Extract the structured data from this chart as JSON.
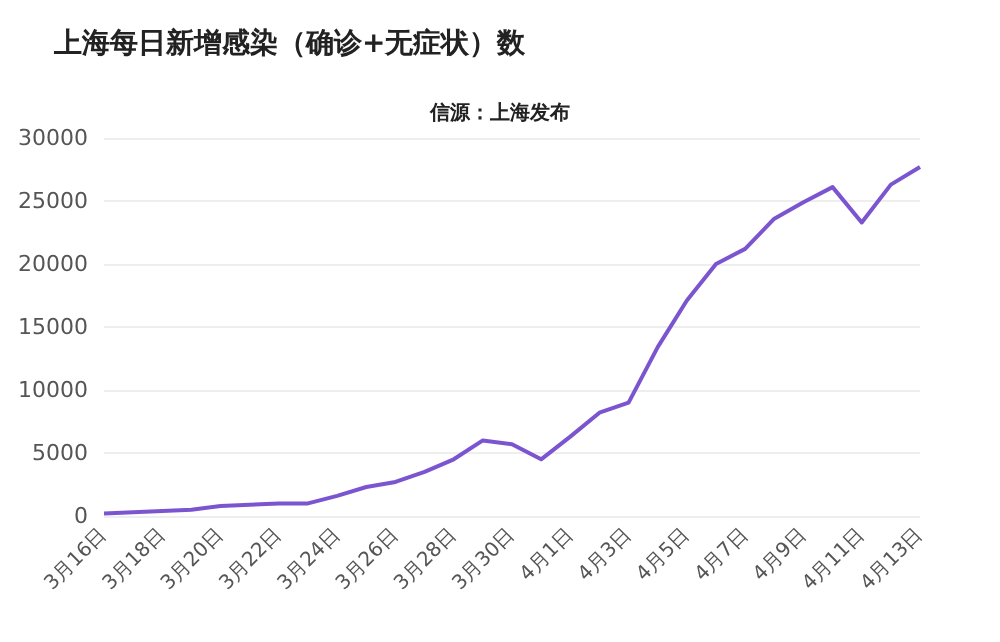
{
  "chart_data": {
    "type": "line",
    "title": "上海每日新增感染（确诊+无症状）数",
    "subtitle": "信源：上海发布",
    "categories": [
      "3月16日",
      null,
      "3月18日",
      null,
      "3月20日",
      null,
      "3月22日",
      null,
      "3月24日",
      null,
      "3月26日",
      null,
      "3月28日",
      null,
      "3月30日",
      null,
      "4月1日",
      null,
      "4月3日",
      null,
      "4月5日",
      null,
      "4月7日",
      null,
      "4月9日",
      null,
      "4月11日",
      null,
      "4月13日"
    ],
    "series": [
      {
        "color": "#7b55d0",
        "values": [
          200,
          300,
          400,
          500,
          800,
          900,
          1000,
          1000,
          1600,
          2300,
          2700,
          3500,
          4500,
          6000,
          5700,
          4500,
          6300,
          8200,
          9000,
          13400,
          17100,
          20000,
          21200,
          23600,
          24900,
          26100,
          23300,
          26300,
          27700
        ]
      }
    ],
    "ylim": [
      0,
      30000
    ],
    "yticks": [
      0,
      5000,
      10000,
      15000,
      20000,
      25000,
      30000
    ],
    "grid": "y",
    "marker": "none",
    "line_style": "solid"
  }
}
